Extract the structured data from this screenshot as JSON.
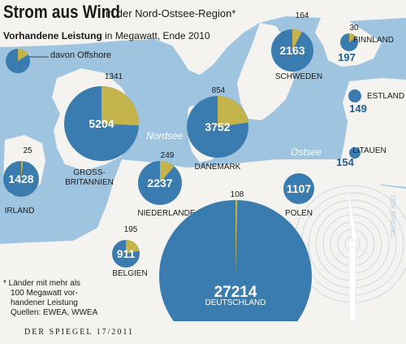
{
  "header": {
    "title": "Strom aus Wind",
    "title_suffix": "in der Nord-Ostsee-Region*",
    "subtitle_bold": "Vorhandene Leistung",
    "subtitle_rest": "in Megawatt, Ende 2010",
    "legend_offshore": "davon Offshore"
  },
  "map": {
    "sea_labels": [
      "Nordsee",
      "Ostsee"
    ]
  },
  "footnote": {
    "lines": [
      "* Länder mit mehr als",
      "100 Megawatt vor-",
      "handener Leistung",
      "Quellen: EWEA, WWEA"
    ]
  },
  "footer": {
    "source": "DER SPIEGEL 17/2011"
  },
  "colors": {
    "sea": "#9ec4e0",
    "land": "#f4f3ef",
    "total": "#3a7cb0",
    "offshore": "#c4b34a",
    "label": "#1a1a1a",
    "value_in_circle": "#ffffff",
    "value_outside": "#1f5f95"
  },
  "chart_data": {
    "type": "pie",
    "title": "Strom aus Wind",
    "subtitle": "Vorhandene Leistung in Megawatt, Ende 2010",
    "unit": "Megawatt",
    "series_names": [
      "Vorhandene Leistung",
      "davon Offshore"
    ],
    "countries": [
      {
        "name": "GROSS-BRITANNIEN",
        "total": 5204,
        "offshore": 1341
      },
      {
        "name": "DÄNEMARK",
        "total": 3752,
        "offshore": 854
      },
      {
        "name": "SCHWEDEN",
        "total": 2163,
        "offshore": 164
      },
      {
        "name": "FINNLAND",
        "total": 197,
        "offshore": 30
      },
      {
        "name": "ESTLAND",
        "total": 149,
        "offshore": null
      },
      {
        "name": "LITAUEN",
        "total": 154,
        "offshore": null
      },
      {
        "name": "IRLAND",
        "total": 1428,
        "offshore": 25
      },
      {
        "name": "NIEDERLANDE",
        "total": 2237,
        "offshore": 249
      },
      {
        "name": "BELGIEN",
        "total": 911,
        "offshore": 195
      },
      {
        "name": "POLEN",
        "total": 1107,
        "offshore": null
      },
      {
        "name": "DEUTSCHLAND",
        "total": 27214,
        "offshore": 108
      }
    ]
  }
}
